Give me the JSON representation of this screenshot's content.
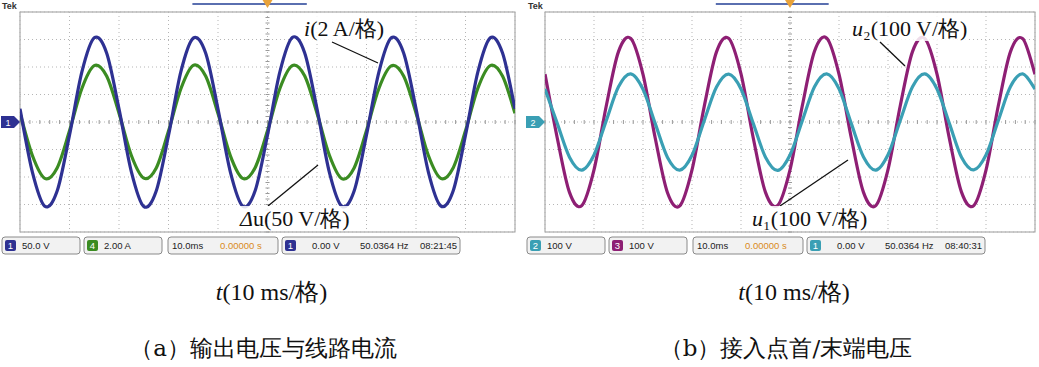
{
  "chart_data": [
    {
      "type": "line",
      "title": "（a）输出电压与线路电流",
      "header": "Tek",
      "ground_marker": "1",
      "x_label": "t(10 ms/格)",
      "xlim": [
        0,
        100
      ],
      "xticks": [
        0,
        10,
        20,
        30,
        40,
        50,
        60,
        70,
        80,
        90,
        100
      ],
      "ylim": [
        -4,
        4
      ],
      "yticks": [
        -4,
        -3,
        -2,
        -1,
        0,
        1,
        2,
        3,
        4
      ],
      "grid": true,
      "tick_labels": false,
      "x": [
        0,
        2.5,
        5,
        7.5,
        10,
        12.5,
        15,
        17.5,
        20,
        22.5,
        25,
        27.5,
        30,
        32.5,
        35,
        37.5,
        40,
        42.5,
        45,
        47.5,
        50,
        52.5,
        55,
        57.5,
        60,
        62.5,
        65,
        67.5,
        70,
        72.5,
        75,
        77.5,
        80,
        82.5,
        85,
        87.5,
        90,
        92.5,
        95,
        97.5,
        100
      ],
      "series": [
        {
          "name": "i(2 A/格)",
          "color": "#3b8c22",
          "values": [
            0.32,
            -1.22,
            -2.05,
            -1.67,
            -0.32,
            1.22,
            2.05,
            1.67,
            0.32,
            -1.22,
            -2.04,
            -1.68,
            -0.33,
            1.21,
            2.06,
            1.67,
            0.31,
            -1.23,
            -2.05,
            -1.66,
            -0.32,
            1.22,
            2.05,
            1.68,
            0.32,
            -1.21,
            -2.06,
            -1.67,
            -0.31,
            1.22,
            2.04,
            1.67,
            0.33,
            -1.22,
            -2.05,
            -1.67,
            -0.32,
            1.23,
            2.05,
            1.66,
            0.32
          ]
        },
        {
          "name": "Δu(50 V/格)",
          "color": "#2e3192",
          "values": [
            0.48,
            -1.82,
            -3.06,
            -2.51,
            -0.48,
            1.82,
            3.06,
            2.51,
            0.48,
            -1.81,
            -3.07,
            -2.52,
            -0.49,
            1.83,
            3.05,
            2.51,
            0.47,
            -1.82,
            -3.06,
            -2.5,
            -0.48,
            1.82,
            3.07,
            2.52,
            0.48,
            -1.83,
            -3.06,
            -2.51,
            -0.47,
            1.81,
            3.06,
            2.51,
            0.49,
            -1.82,
            -3.05,
            -2.51,
            -0.48,
            1.82,
            3.06,
            2.5,
            0.48
          ]
        }
      ],
      "readout": {
        "channels": [
          {
            "channel": "1",
            "scale": "50.0 V",
            "color": "#2e3192"
          },
          {
            "channel": "4",
            "scale": "2.00 A",
            "color": "#3b8c22"
          }
        ],
        "timebase": "10.0ms",
        "delay": "0.00000 s",
        "trigger_channel": "1",
        "trigger_level": "0.00 V",
        "frequency": "50.0364 Hz",
        "time": "08:21:45"
      }
    },
    {
      "type": "line",
      "title": "（b）接入点首/末端电压",
      "header": "Tek",
      "ground_marker": "2",
      "x_label": "t(10 ms/格)",
      "xlim": [
        0,
        100
      ],
      "xticks": [
        0,
        10,
        20,
        30,
        40,
        50,
        60,
        70,
        80,
        90,
        100
      ],
      "ylim": [
        -4,
        4
      ],
      "yticks": [
        -4,
        -3,
        -2,
        -1,
        0,
        1,
        2,
        3,
        4
      ],
      "grid": true,
      "tick_labels": false,
      "x": [
        0,
        2.5,
        5,
        7.5,
        10,
        12.5,
        15,
        17.5,
        20,
        22.5,
        25,
        27.5,
        30,
        32.5,
        35,
        37.5,
        40,
        42.5,
        45,
        47.5,
        50,
        52.5,
        55,
        57.5,
        60,
        62.5,
        65,
        67.5,
        70,
        72.5,
        75,
        77.5,
        80,
        82.5,
        85,
        87.5,
        90,
        92.5,
        95,
        97.5,
        100
      ],
      "series": [
        {
          "name": "u₂(100 V/格)",
          "color": "#8e1f74",
          "values": [
            1.74,
            -0.58,
            -2.56,
            -3.04,
            -1.74,
            0.58,
            2.56,
            3.04,
            1.73,
            -0.59,
            -2.57,
            -3.05,
            -1.74,
            0.57,
            2.55,
            3.04,
            1.75,
            -0.58,
            -2.56,
            -3.03,
            -1.74,
            0.58,
            2.57,
            3.05,
            1.74,
            -0.57,
            -2.56,
            -3.04,
            -1.73,
            0.59,
            2.56,
            3.04,
            1.74,
            -0.58,
            -2.55,
            -3.04,
            -1.75,
            0.58,
            2.56,
            3.03,
            1.74
          ]
        },
        {
          "name": "u₁(100 V/格)",
          "color": "#3a9fb4",
          "values": [
            1.2,
            -0.05,
            -1.28,
            -1.75,
            -1.2,
            0.05,
            1.28,
            1.75,
            1.19,
            -0.06,
            -1.29,
            -1.75,
            -1.21,
            0.05,
            1.27,
            1.74,
            1.2,
            -0.05,
            -1.28,
            -1.76,
            -1.2,
            0.04,
            1.28,
            1.75,
            1.21,
            -0.05,
            -1.27,
            -1.75,
            -1.19,
            0.06,
            1.28,
            1.75,
            1.2,
            -0.04,
            -1.28,
            -1.74,
            -1.2,
            0.05,
            1.29,
            1.75,
            1.2
          ]
        }
      ],
      "readout": {
        "channels": [
          {
            "channel": "2",
            "scale": "100 V",
            "color": "#3a9fb4"
          },
          {
            "channel": "3",
            "scale": "100 V",
            "color": "#8e1f74"
          }
        ],
        "timebase": "10.0ms",
        "delay": "0.00000 s",
        "trigger_channel": "1",
        "trigger_level": "0.00 V",
        "frequency": "50.0364 Hz",
        "time": "08:40:31"
      }
    }
  ]
}
